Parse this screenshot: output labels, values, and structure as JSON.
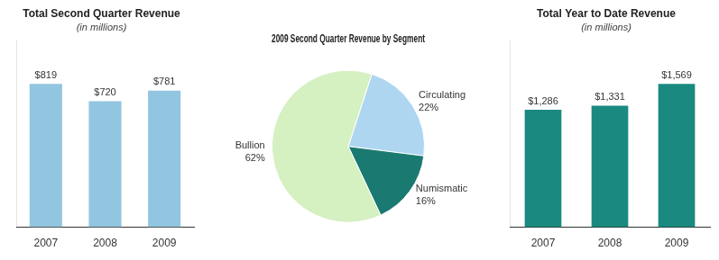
{
  "chart_data": [
    {
      "type": "bar",
      "title": "Total Second Quarter Revenue",
      "subtitle": "(in millions)",
      "categories": [
        "2007",
        "2008",
        "2009"
      ],
      "values": [
        819,
        720,
        781
      ],
      "value_labels": [
        "$819",
        "$720",
        "$781"
      ],
      "data_labels": true,
      "color": "#92C5E0",
      "ylim": [
        0,
        1064.7
      ],
      "grid": false,
      "tick_labels": "x"
    },
    {
      "type": "pie",
      "title": "2009 Second Quarter Revenue by Segment",
      "categories": [
        "Circulating",
        "Numismatic",
        "Bullion"
      ],
      "values": [
        22,
        16,
        62
      ],
      "value_labels": [
        "22%",
        "16%",
        "62%"
      ],
      "data_labels": true,
      "colors": [
        "#AED6F1",
        "#1A7A72",
        "#D5F0C1"
      ]
    },
    {
      "type": "bar",
      "title": "Total Year to Date Revenue",
      "subtitle": "(in millions)",
      "categories": [
        "2007",
        "2008",
        "2009"
      ],
      "values": [
        1286,
        1331,
        1569
      ],
      "value_labels": [
        "$1,286",
        "$1,331",
        "$1,569"
      ],
      "data_labels": true,
      "color": "#1A8A80",
      "ylim": [
        0,
        2039.7
      ],
      "grid": false,
      "tick_labels": "x"
    }
  ]
}
